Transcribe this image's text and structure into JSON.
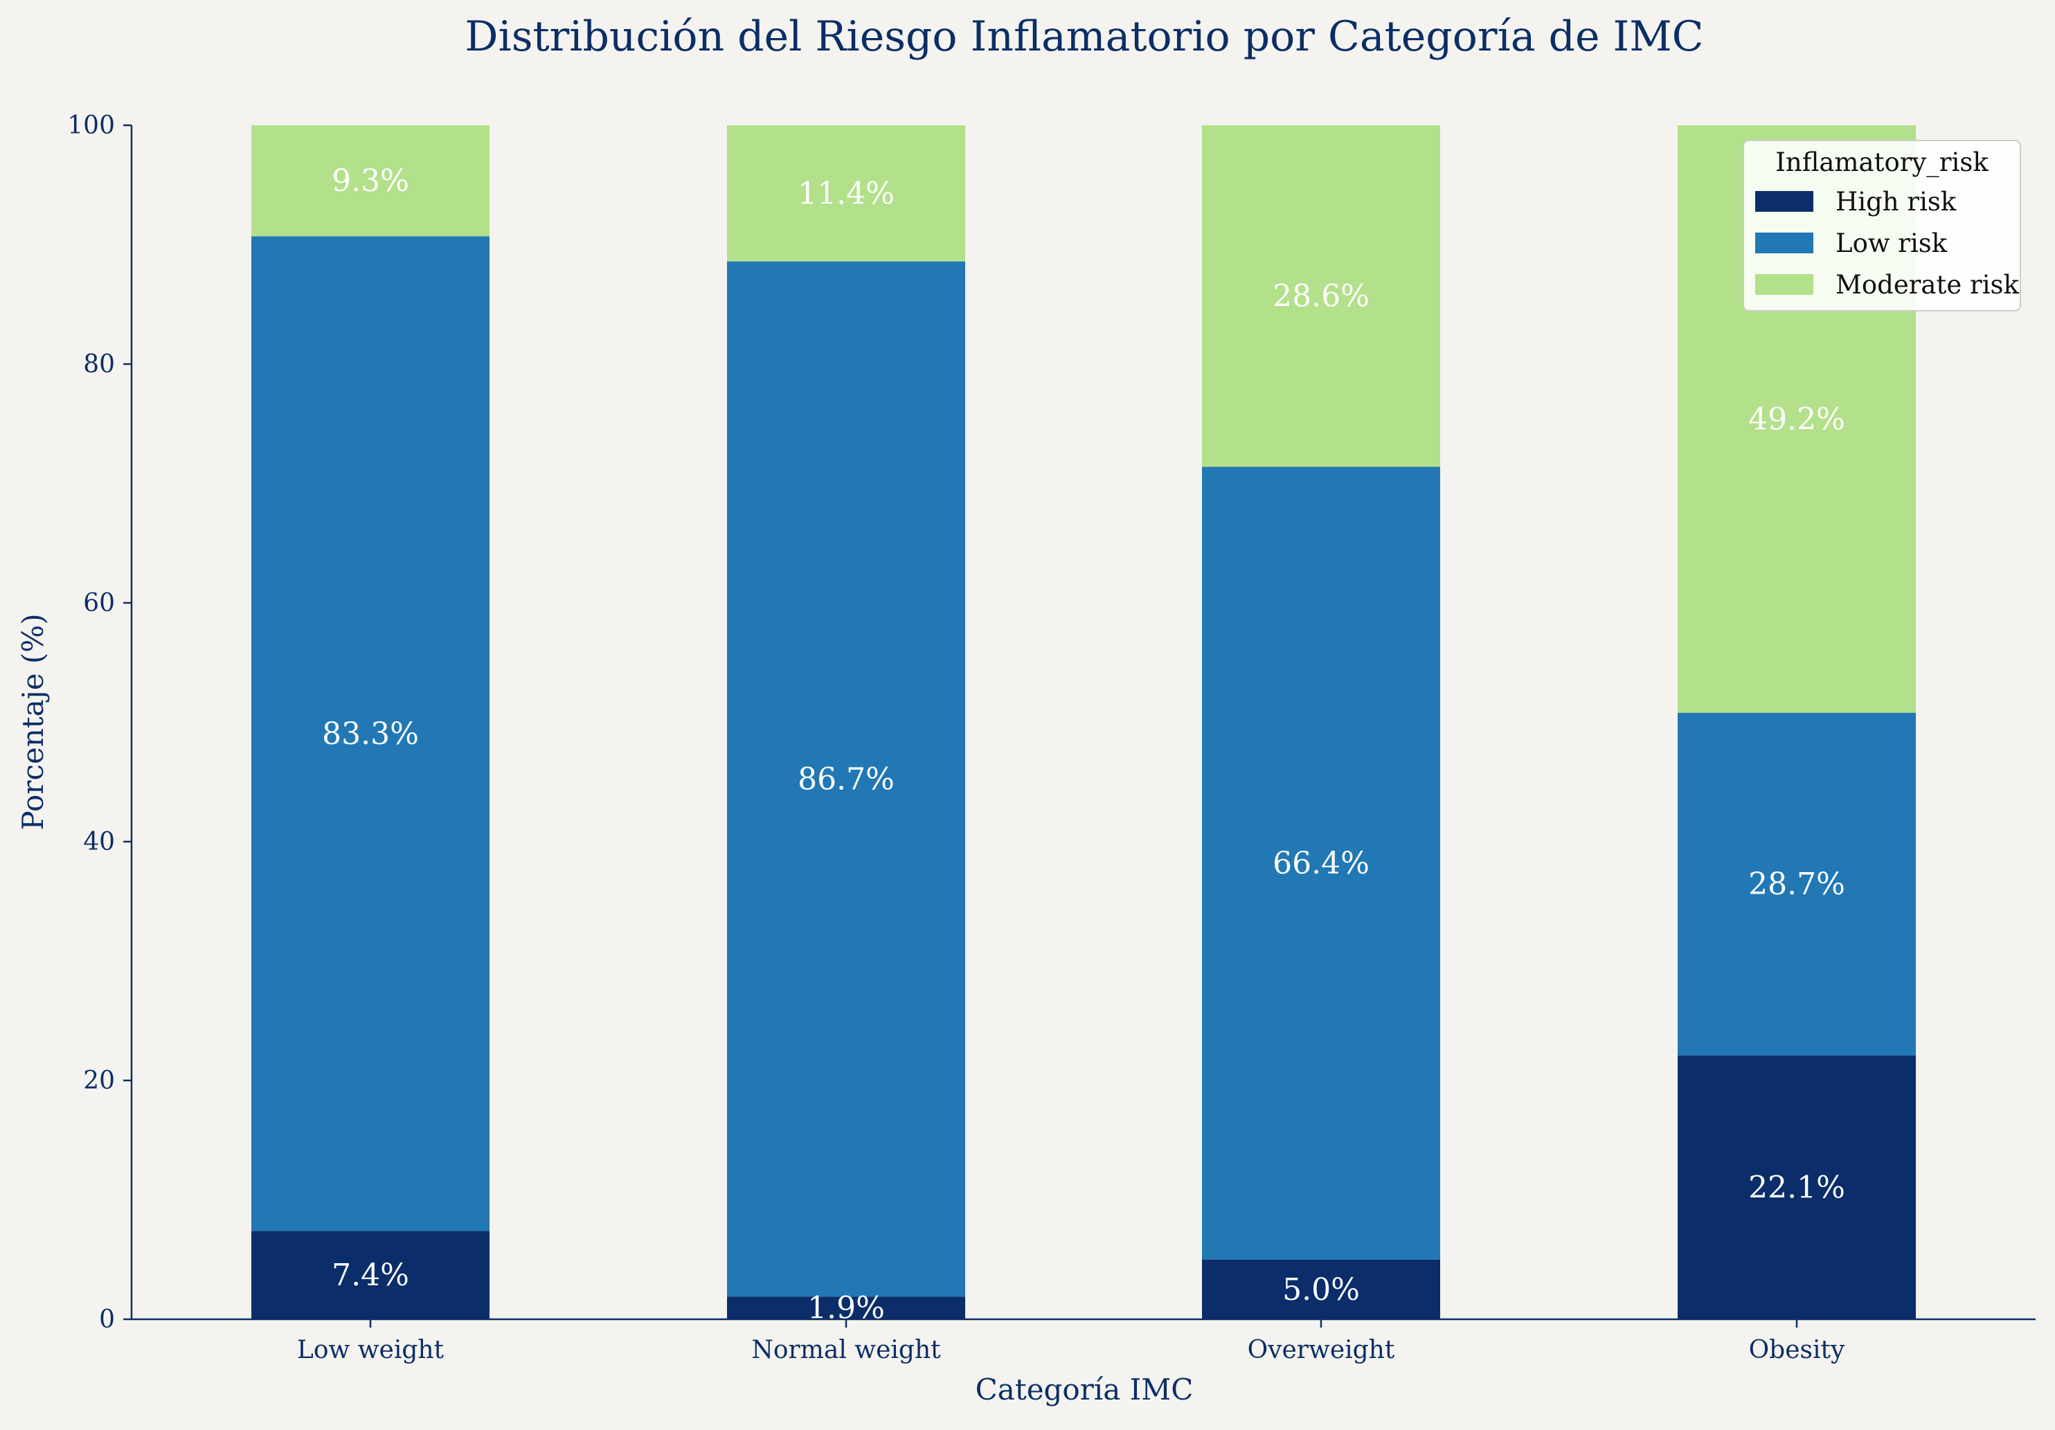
{
  "chart_data": {
    "type": "bar",
    "stacked": true,
    "title": "Distribución del Riesgo Inflamatorio por Categoría de IMC",
    "xlabel": "Categoría IMC",
    "ylabel": "Porcentaje (%)",
    "ylim": [
      0,
      100
    ],
    "yticks": [
      0,
      20,
      40,
      60,
      80,
      100
    ],
    "categories": [
      "Low weight",
      "Normal weight",
      "Overweight",
      "Obesity"
    ],
    "series": [
      {
        "name": "High risk",
        "color": "#0b2e6a",
        "values": [
          7.4,
          1.9,
          5.0,
          22.1
        ],
        "labels": [
          "7.4%",
          "1.9%",
          "5.0%",
          "22.1%"
        ]
      },
      {
        "name": "Low risk",
        "color": "#2178b4",
        "values": [
          83.3,
          86.7,
          66.4,
          28.7
        ],
        "labels": [
          "83.3%",
          "86.7%",
          "66.4%",
          "28.7%"
        ]
      },
      {
        "name": "Moderate risk",
        "color": "#b3e08a",
        "values": [
          9.3,
          11.4,
          28.6,
          49.2
        ],
        "labels": [
          "9.3%",
          "11.4%",
          "28.6%",
          "49.2%"
        ]
      }
    ],
    "legend": {
      "title": "Inflamatory_risk",
      "position": "top-right"
    },
    "grid": false
  }
}
